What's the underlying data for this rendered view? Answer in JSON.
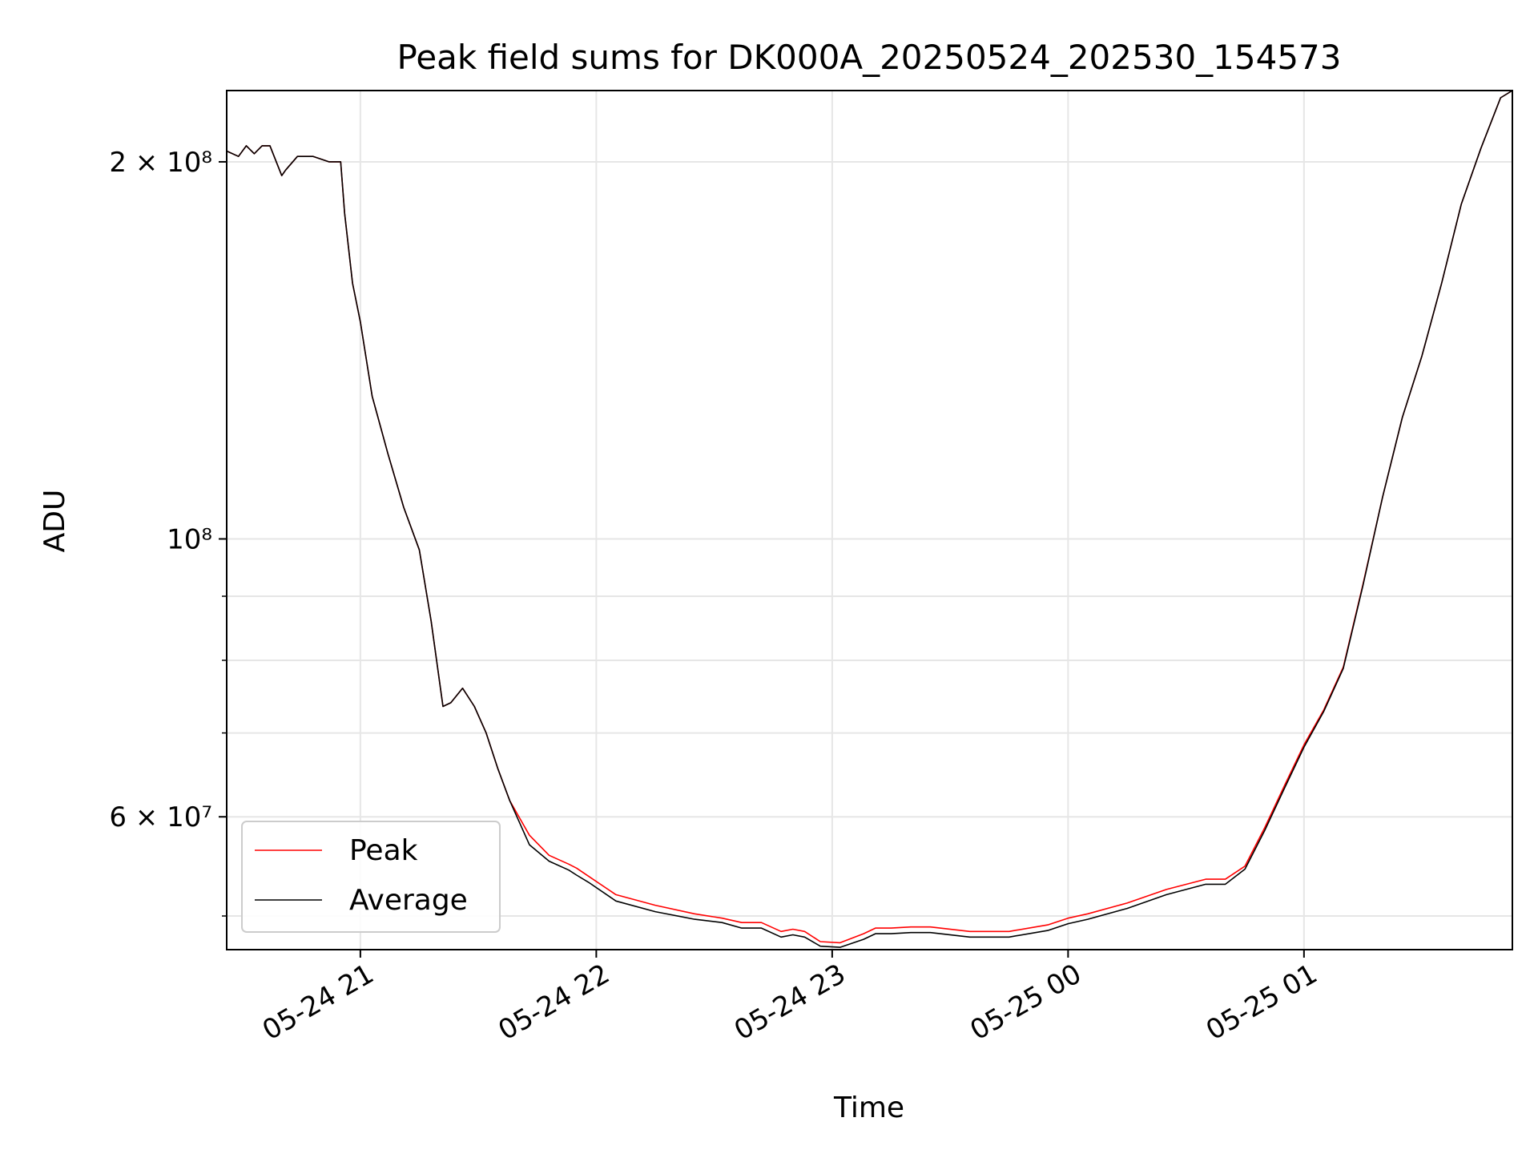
{
  "chart_data": {
    "type": "line",
    "title": "Peak field sums for DK000A_20250524_202530_154573",
    "xlabel": "Time",
    "ylabel": "ADU",
    "yscale": "log",
    "xlim": [
      "2025-05-24 20:26",
      "2025-05-25 01:53"
    ],
    "ylim": [
      47000000,
      228000000
    ],
    "x_ticks": [
      "05-24 21",
      "05-24 22",
      "05-24 23",
      "05-25 00",
      "05-25 01"
    ],
    "x_tick_values": [
      "2025-05-24 21:00",
      "2025-05-24 22:00",
      "2025-05-24 23:00",
      "2025-05-25 00:00",
      "2025-05-25 01:00"
    ],
    "y_major_ticks": [
      {
        "value": 200000000,
        "label": "2 × 10⁸"
      },
      {
        "value": 100000000,
        "label": "10⁸"
      },
      {
        "value": 60000000,
        "label": "6 × 10⁷"
      }
    ],
    "y_minor_ticks": [
      50000000,
      70000000,
      80000000,
      90000000
    ],
    "grid": true,
    "legend_position": "lower-left",
    "x_times": [
      "20:26",
      "20:29",
      "20:31",
      "20:33",
      "20:35",
      "20:37",
      "20:40",
      "20:41",
      "20:44",
      "20:48",
      "20:52",
      "20:55",
      "20:56",
      "20:58",
      "21:00",
      "21:03",
      "21:07",
      "21:11",
      "21:15",
      "21:18",
      "21:21",
      "21:23",
      "21:26",
      "21:29",
      "21:32",
      "21:35",
      "21:38",
      "21:43",
      "21:48",
      "21:53",
      "21:55",
      "21:58",
      "22:05",
      "22:15",
      "22:25",
      "22:32",
      "22:37",
      "22:42",
      "22:47",
      "22:50",
      "22:53",
      "22:57",
      "23:02",
      "23:08",
      "23:11",
      "23:15",
      "23:20",
      "23:25",
      "23:35",
      "23:45",
      "23:55",
      "24:00",
      "24:05",
      "24:15",
      "24:25",
      "24:35",
      "24:40",
      "24:45",
      "24:50",
      "24:55",
      "25:00",
      "25:05",
      "25:10",
      "25:15",
      "25:20",
      "25:25",
      "25:30",
      "25:35",
      "25:40",
      "25:45",
      "25:50",
      "25:53"
    ],
    "series": [
      {
        "name": "Peak",
        "color": "#ff0000",
        "values": [
          204000000,
          202000000,
          206000000,
          203000000,
          206000000,
          206000000,
          195000000,
          197000000,
          202000000,
          202000000,
          200000000,
          200000000,
          182000000,
          160000000,
          149000000,
          130000000,
          117000000,
          106000000,
          98000000,
          86000000,
          73500000,
          74000000,
          76000000,
          73500000,
          70000000,
          65500000,
          61800000,
          58000000,
          55900000,
          55000000,
          54600000,
          53800000,
          52000000,
          51000000,
          50200000,
          49800000,
          49400000,
          49400000,
          48600000,
          48800000,
          48600000,
          47700000,
          47600000,
          48400000,
          48900000,
          48900000,
          49000000,
          49000000,
          48600000,
          48600000,
          49200000,
          49800000,
          50200000,
          51200000,
          52500000,
          53500000,
          53500000,
          54800000,
          58800000,
          63500000,
          68500000,
          73000000,
          79000000,
          92000000,
          108000000,
          125000000,
          140000000,
          160000000,
          185000000,
          205000000,
          225000000,
          228000000
        ]
      },
      {
        "name": "Average",
        "color": "#000000",
        "values": [
          204000000,
          202000000,
          206000000,
          203000000,
          206000000,
          206000000,
          195000000,
          197000000,
          202000000,
          202000000,
          200000000,
          200000000,
          182000000,
          160000000,
          149000000,
          130000000,
          117000000,
          106000000,
          98000000,
          86000000,
          73500000,
          74000000,
          76000000,
          73500000,
          70000000,
          65500000,
          61800000,
          57000000,
          55300000,
          54400000,
          53900000,
          53200000,
          51400000,
          50400000,
          49700000,
          49400000,
          48900000,
          48900000,
          48100000,
          48300000,
          48100000,
          47300000,
          47200000,
          47900000,
          48400000,
          48400000,
          48500000,
          48500000,
          48100000,
          48100000,
          48700000,
          49300000,
          49700000,
          50700000,
          52000000,
          53000000,
          53000000,
          54500000,
          58500000,
          63200000,
          68200000,
          72800000,
          78800000,
          91800000,
          108000000,
          125000000,
          140000000,
          160000000,
          185000000,
          205000000,
          225000000,
          228000000
        ]
      }
    ]
  }
}
